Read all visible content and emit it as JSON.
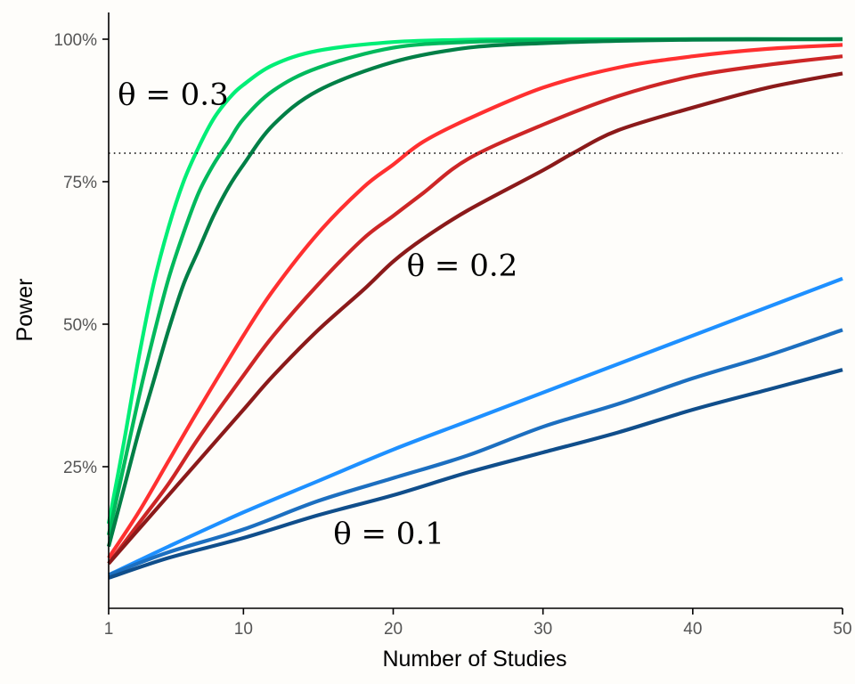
{
  "chart_data": {
    "type": "line",
    "title": "",
    "xlabel": "Number of Studies",
    "ylabel": "Power",
    "xlim": [
      1,
      50
    ],
    "ylim": [
      0,
      1.05
    ],
    "x_ticks": [
      {
        "value": 1,
        "label": "1"
      },
      {
        "value": 10,
        "label": "10"
      },
      {
        "value": 20,
        "label": "20"
      },
      {
        "value": 30,
        "label": "30"
      },
      {
        "value": 40,
        "label": "40"
      },
      {
        "value": 50,
        "label": "50"
      }
    ],
    "y_ticks": [
      {
        "value": 0.25,
        "label": "25%"
      },
      {
        "value": 0.5,
        "label": "50%"
      },
      {
        "value": 0.75,
        "label": "75%"
      },
      {
        "value": 1.0,
        "label": "100%"
      }
    ],
    "reference_line": {
      "y": 0.8,
      "style": "dotted"
    },
    "grid": false,
    "legend": "none",
    "annotations": [
      {
        "text": "θ = 0.3",
        "x": 1.6,
        "y": 0.885
      },
      {
        "text": "θ = 0.2",
        "x": 20.9,
        "y": 0.585
      },
      {
        "text": "θ = 0.1",
        "x": 16.0,
        "y": 0.115
      }
    ],
    "series": [
      {
        "color": "#00ee76",
        "points": [
          [
            1,
            0.15
          ],
          [
            2,
            0.29
          ],
          [
            3,
            0.44
          ],
          [
            4,
            0.57
          ],
          [
            5,
            0.67
          ],
          [
            6,
            0.75
          ],
          [
            7,
            0.81
          ],
          [
            8,
            0.86
          ],
          [
            9,
            0.895
          ],
          [
            10,
            0.92
          ],
          [
            12,
            0.955
          ],
          [
            15,
            0.98
          ],
          [
            20,
            0.995
          ],
          [
            25,
            0.999
          ],
          [
            30,
            1.0
          ],
          [
            40,
            1.0
          ],
          [
            50,
            1.0
          ]
        ]
      },
      {
        "color": "#00b95c",
        "points": [
          [
            1,
            0.13
          ],
          [
            2,
            0.25
          ],
          [
            3,
            0.37
          ],
          [
            4,
            0.48
          ],
          [
            5,
            0.58
          ],
          [
            6,
            0.66
          ],
          [
            7,
            0.73
          ],
          [
            8,
            0.78
          ],
          [
            9,
            0.82
          ],
          [
            10,
            0.86
          ],
          [
            12,
            0.91
          ],
          [
            15,
            0.95
          ],
          [
            20,
            0.985
          ],
          [
            25,
            0.995
          ],
          [
            30,
            0.998
          ],
          [
            40,
            1.0
          ],
          [
            50,
            1.0
          ]
        ]
      },
      {
        "color": "#007f46",
        "points": [
          [
            1,
            0.11
          ],
          [
            2,
            0.21
          ],
          [
            3,
            0.31
          ],
          [
            4,
            0.4
          ],
          [
            5,
            0.49
          ],
          [
            6,
            0.57
          ],
          [
            7,
            0.63
          ],
          [
            8,
            0.69
          ],
          [
            9,
            0.74
          ],
          [
            10,
            0.78
          ],
          [
            12,
            0.85
          ],
          [
            15,
            0.91
          ],
          [
            20,
            0.96
          ],
          [
            25,
            0.985
          ],
          [
            30,
            0.993
          ],
          [
            35,
            0.997
          ],
          [
            40,
            0.999
          ],
          [
            50,
            1.0
          ]
        ]
      },
      {
        "color": "#ff3030",
        "points": [
          [
            1,
            0.09
          ],
          [
            3,
            0.17
          ],
          [
            5,
            0.26
          ],
          [
            7,
            0.35
          ],
          [
            10,
            0.48
          ],
          [
            12,
            0.56
          ],
          [
            15,
            0.66
          ],
          [
            18,
            0.74
          ],
          [
            20,
            0.78
          ],
          [
            22,
            0.82
          ],
          [
            25,
            0.86
          ],
          [
            30,
            0.915
          ],
          [
            35,
            0.95
          ],
          [
            40,
            0.97
          ],
          [
            45,
            0.983
          ],
          [
            50,
            0.99
          ]
        ]
      },
      {
        "color": "#cd2626",
        "points": [
          [
            1,
            0.08
          ],
          [
            3,
            0.15
          ],
          [
            5,
            0.22
          ],
          [
            7,
            0.3
          ],
          [
            10,
            0.41
          ],
          [
            12,
            0.48
          ],
          [
            15,
            0.57
          ],
          [
            18,
            0.65
          ],
          [
            20,
            0.69
          ],
          [
            22,
            0.73
          ],
          [
            25,
            0.79
          ],
          [
            30,
            0.85
          ],
          [
            35,
            0.9
          ],
          [
            40,
            0.935
          ],
          [
            45,
            0.955
          ],
          [
            50,
            0.97
          ]
        ]
      },
      {
        "color": "#8b1a1a",
        "points": [
          [
            1,
            0.08
          ],
          [
            3,
            0.14
          ],
          [
            5,
            0.2
          ],
          [
            7,
            0.26
          ],
          [
            10,
            0.35
          ],
          [
            12,
            0.41
          ],
          [
            15,
            0.49
          ],
          [
            18,
            0.56
          ],
          [
            20,
            0.61
          ],
          [
            22,
            0.65
          ],
          [
            25,
            0.7
          ],
          [
            30,
            0.77
          ],
          [
            32,
            0.8
          ],
          [
            35,
            0.84
          ],
          [
            40,
            0.88
          ],
          [
            45,
            0.915
          ],
          [
            50,
            0.94
          ]
        ]
      },
      {
        "color": "#1e90ff",
        "points": [
          [
            1,
            0.06
          ],
          [
            5,
            0.11
          ],
          [
            10,
            0.17
          ],
          [
            15,
            0.225
          ],
          [
            20,
            0.28
          ],
          [
            25,
            0.33
          ],
          [
            30,
            0.38
          ],
          [
            35,
            0.43
          ],
          [
            40,
            0.48
          ],
          [
            45,
            0.53
          ],
          [
            50,
            0.58
          ]
        ]
      },
      {
        "color": "#1c6fc0",
        "points": [
          [
            1,
            0.06
          ],
          [
            5,
            0.1
          ],
          [
            10,
            0.14
          ],
          [
            15,
            0.19
          ],
          [
            20,
            0.23
          ],
          [
            25,
            0.27
          ],
          [
            30,
            0.32
          ],
          [
            35,
            0.36
          ],
          [
            40,
            0.405
          ],
          [
            45,
            0.445
          ],
          [
            50,
            0.49
          ]
        ]
      },
      {
        "color": "#104e8b",
        "points": [
          [
            1,
            0.055
          ],
          [
            5,
            0.09
          ],
          [
            10,
            0.125
          ],
          [
            15,
            0.165
          ],
          [
            20,
            0.2
          ],
          [
            25,
            0.24
          ],
          [
            30,
            0.275
          ],
          [
            35,
            0.31
          ],
          [
            40,
            0.35
          ],
          [
            45,
            0.385
          ],
          [
            50,
            0.42
          ]
        ]
      }
    ]
  }
}
